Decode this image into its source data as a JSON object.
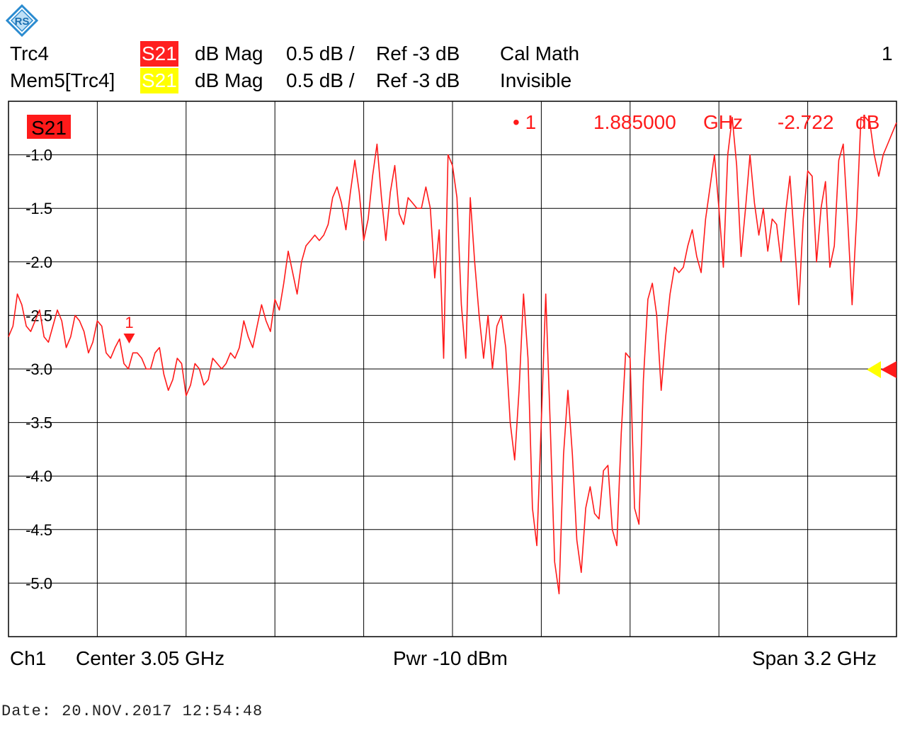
{
  "header": {
    "rows": [
      {
        "trace": "Trc4",
        "param": "S21",
        "badge_color": "#ff2020",
        "badge_text_color": "#ffffff",
        "format": "dB Mag",
        "scale": "0.5 dB /",
        "ref": "Ref -3 dB",
        "info": "Cal Math",
        "channel": "1"
      },
      {
        "trace": "Mem5[Trc4]",
        "param": "S21",
        "badge_color": "#ffff00",
        "badge_text_color": "#ffffff",
        "format": "dB Mag",
        "scale": "0.5 dB /",
        "ref": "Ref -3 dB",
        "info": "Invisible"
      }
    ]
  },
  "colors": {
    "trace": "#ff1a1a",
    "memory": "#ffff00",
    "grid": "#000000"
  },
  "logo_icon": "rohde-schwarz-logo-icon",
  "chart_data": {
    "type": "line",
    "trace_label": "S21",
    "x_unit": "GHz",
    "xlim": [
      1.45,
      4.65
    ],
    "ylim": [
      -5.5,
      -0.5
    ],
    "yticks": [
      "-1.0",
      "-1.5",
      "-2.0",
      "-2.5",
      "-3.0",
      "-3.5",
      "-4.0",
      "-4.5",
      "-5.0"
    ],
    "ytick_values": [
      -1.0,
      -1.5,
      -2.0,
      -2.5,
      -3.0,
      -3.5,
      -4.0,
      -4.5,
      -5.0
    ],
    "reference_level": -3.0,
    "grid": true,
    "marker": {
      "label": "1",
      "readout_label": "• 1",
      "frequency": "1.885000",
      "freq_unit": "GHz",
      "value": "-2.722",
      "value_unit": "dB",
      "x": 1.885,
      "y": -2.722
    },
    "series": [
      {
        "name": "Trc4",
        "x": [
          1.45,
          1.466,
          1.482,
          1.498,
          1.514,
          1.53,
          1.546,
          1.562,
          1.578,
          1.594,
          1.61,
          1.626,
          1.642,
          1.658,
          1.674,
          1.69,
          1.706,
          1.722,
          1.738,
          1.754,
          1.77,
          1.786,
          1.802,
          1.818,
          1.834,
          1.85,
          1.866,
          1.882,
          1.898,
          1.914,
          1.93,
          1.946,
          1.962,
          1.978,
          1.994,
          2.01,
          2.026,
          2.042,
          2.058,
          2.074,
          2.09,
          2.106,
          2.122,
          2.138,
          2.154,
          2.17,
          2.186,
          2.202,
          2.218,
          2.234,
          2.25,
          2.266,
          2.282,
          2.298,
          2.314,
          2.33,
          2.346,
          2.362,
          2.378,
          2.394,
          2.41,
          2.426,
          2.442,
          2.458,
          2.474,
          2.49,
          2.506,
          2.522,
          2.538,
          2.554,
          2.57,
          2.586,
          2.602,
          2.618,
          2.634,
          2.65,
          2.666,
          2.682,
          2.698,
          2.714,
          2.73,
          2.746,
          2.762,
          2.778,
          2.794,
          2.81,
          2.826,
          2.842,
          2.858,
          2.874,
          2.89,
          2.906,
          2.922,
          2.938,
          2.954,
          2.97,
          2.986,
          3.002,
          3.018,
          3.034,
          3.05,
          3.066,
          3.082,
          3.098,
          3.114,
          3.13,
          3.146,
          3.162,
          3.178,
          3.194,
          3.21,
          3.226,
          3.242,
          3.258,
          3.274,
          3.29,
          3.306,
          3.322,
          3.338,
          3.354,
          3.37,
          3.386,
          3.402,
          3.418,
          3.434,
          3.45,
          3.466,
          3.482,
          3.498,
          3.514,
          3.53,
          3.546,
          3.562,
          3.578,
          3.594,
          3.61,
          3.626,
          3.642,
          3.658,
          3.674,
          3.69,
          3.706,
          3.722,
          3.738,
          3.754,
          3.77,
          3.786,
          3.802,
          3.818,
          3.834,
          3.85,
          3.866,
          3.882,
          3.898,
          3.914,
          3.93,
          3.946,
          3.962,
          3.978,
          3.994,
          4.01,
          4.026,
          4.042,
          4.058,
          4.074,
          4.09,
          4.106,
          4.122,
          4.138,
          4.154,
          4.17,
          4.186,
          4.202,
          4.218,
          4.234,
          4.25,
          4.266,
          4.282,
          4.298,
          4.314,
          4.33,
          4.346,
          4.362,
          4.378,
          4.394,
          4.41,
          4.426,
          4.442,
          4.458,
          4.474,
          4.49,
          4.506,
          4.522,
          4.538,
          4.554,
          4.57,
          4.586,
          4.602,
          4.618,
          4.634,
          4.65
        ],
        "y": [
          -2.7,
          -2.6,
          -2.3,
          -2.4,
          -2.6,
          -2.65,
          -2.55,
          -2.45,
          -2.7,
          -2.75,
          -2.6,
          -2.45,
          -2.55,
          -2.8,
          -2.7,
          -2.5,
          -2.55,
          -2.65,
          -2.85,
          -2.75,
          -2.55,
          -2.6,
          -2.85,
          -2.9,
          -2.8,
          -2.72,
          -2.95,
          -3.0,
          -2.85,
          -2.85,
          -2.9,
          -3.0,
          -3.0,
          -2.85,
          -2.8,
          -3.05,
          -3.2,
          -3.1,
          -2.9,
          -2.95,
          -3.25,
          -3.15,
          -2.95,
          -3.0,
          -3.15,
          -3.1,
          -2.9,
          -2.95,
          -3.0,
          -2.95,
          -2.85,
          -2.9,
          -2.8,
          -2.55,
          -2.7,
          -2.8,
          -2.6,
          -2.4,
          -2.55,
          -2.65,
          -2.35,
          -2.45,
          -2.2,
          -1.9,
          -2.1,
          -2.3,
          -2.0,
          -1.85,
          -1.8,
          -1.75,
          -1.8,
          -1.75,
          -1.65,
          -1.4,
          -1.3,
          -1.45,
          -1.7,
          -1.35,
          -1.05,
          -1.35,
          -1.8,
          -1.6,
          -1.2,
          -0.9,
          -1.4,
          -1.8,
          -1.35,
          -1.1,
          -1.55,
          -1.65,
          -1.4,
          -1.45,
          -1.5,
          -1.5,
          -1.3,
          -1.5,
          -2.15,
          -1.7,
          -2.9,
          -1.0,
          -1.1,
          -1.4,
          -2.4,
          -2.9,
          -1.4,
          -2.0,
          -2.5,
          -2.9,
          -2.5,
          -3.0,
          -2.6,
          -2.5,
          -2.8,
          -3.5,
          -3.85,
          -3.2,
          -2.3,
          -2.9,
          -4.3,
          -4.65,
          -3.5,
          -2.3,
          -3.5,
          -4.8,
          -5.1,
          -3.8,
          -3.2,
          -3.8,
          -4.6,
          -4.9,
          -4.3,
          -4.1,
          -4.35,
          -4.4,
          -3.95,
          -3.9,
          -4.5,
          -4.65,
          -3.6,
          -2.85,
          -2.9,
          -4.3,
          -4.45,
          -3.1,
          -2.35,
          -2.2,
          -2.5,
          -3.2,
          -2.7,
          -2.3,
          -2.05,
          -2.1,
          -2.05,
          -1.85,
          -1.7,
          -1.95,
          -2.1,
          -1.6,
          -1.3,
          -1.0,
          -1.5,
          -2.05,
          -1.0,
          -0.65,
          -1.1,
          -1.95,
          -1.5,
          -1.0,
          -1.45,
          -1.75,
          -1.5,
          -1.9,
          -1.6,
          -1.65,
          -2.0,
          -1.55,
          -1.2,
          -1.8,
          -2.4,
          -1.6,
          -1.15,
          -1.2,
          -2.0,
          -1.5,
          -1.25,
          -2.05,
          -1.85,
          -1.05,
          -0.9,
          -1.6,
          -2.4,
          -1.6,
          -0.65,
          -0.65,
          -0.7,
          -1.0,
          -1.2,
          -1.0,
          -0.9,
          -0.8,
          -0.7
        ]
      }
    ]
  },
  "footer": {
    "channel": "Ch1",
    "center": "Center  3.05 GHz",
    "power": "Pwr  -10 dBm",
    "span": "Span  3.2 GHz"
  },
  "timestamp": "Date: 20.NOV.2017  12:54:48"
}
